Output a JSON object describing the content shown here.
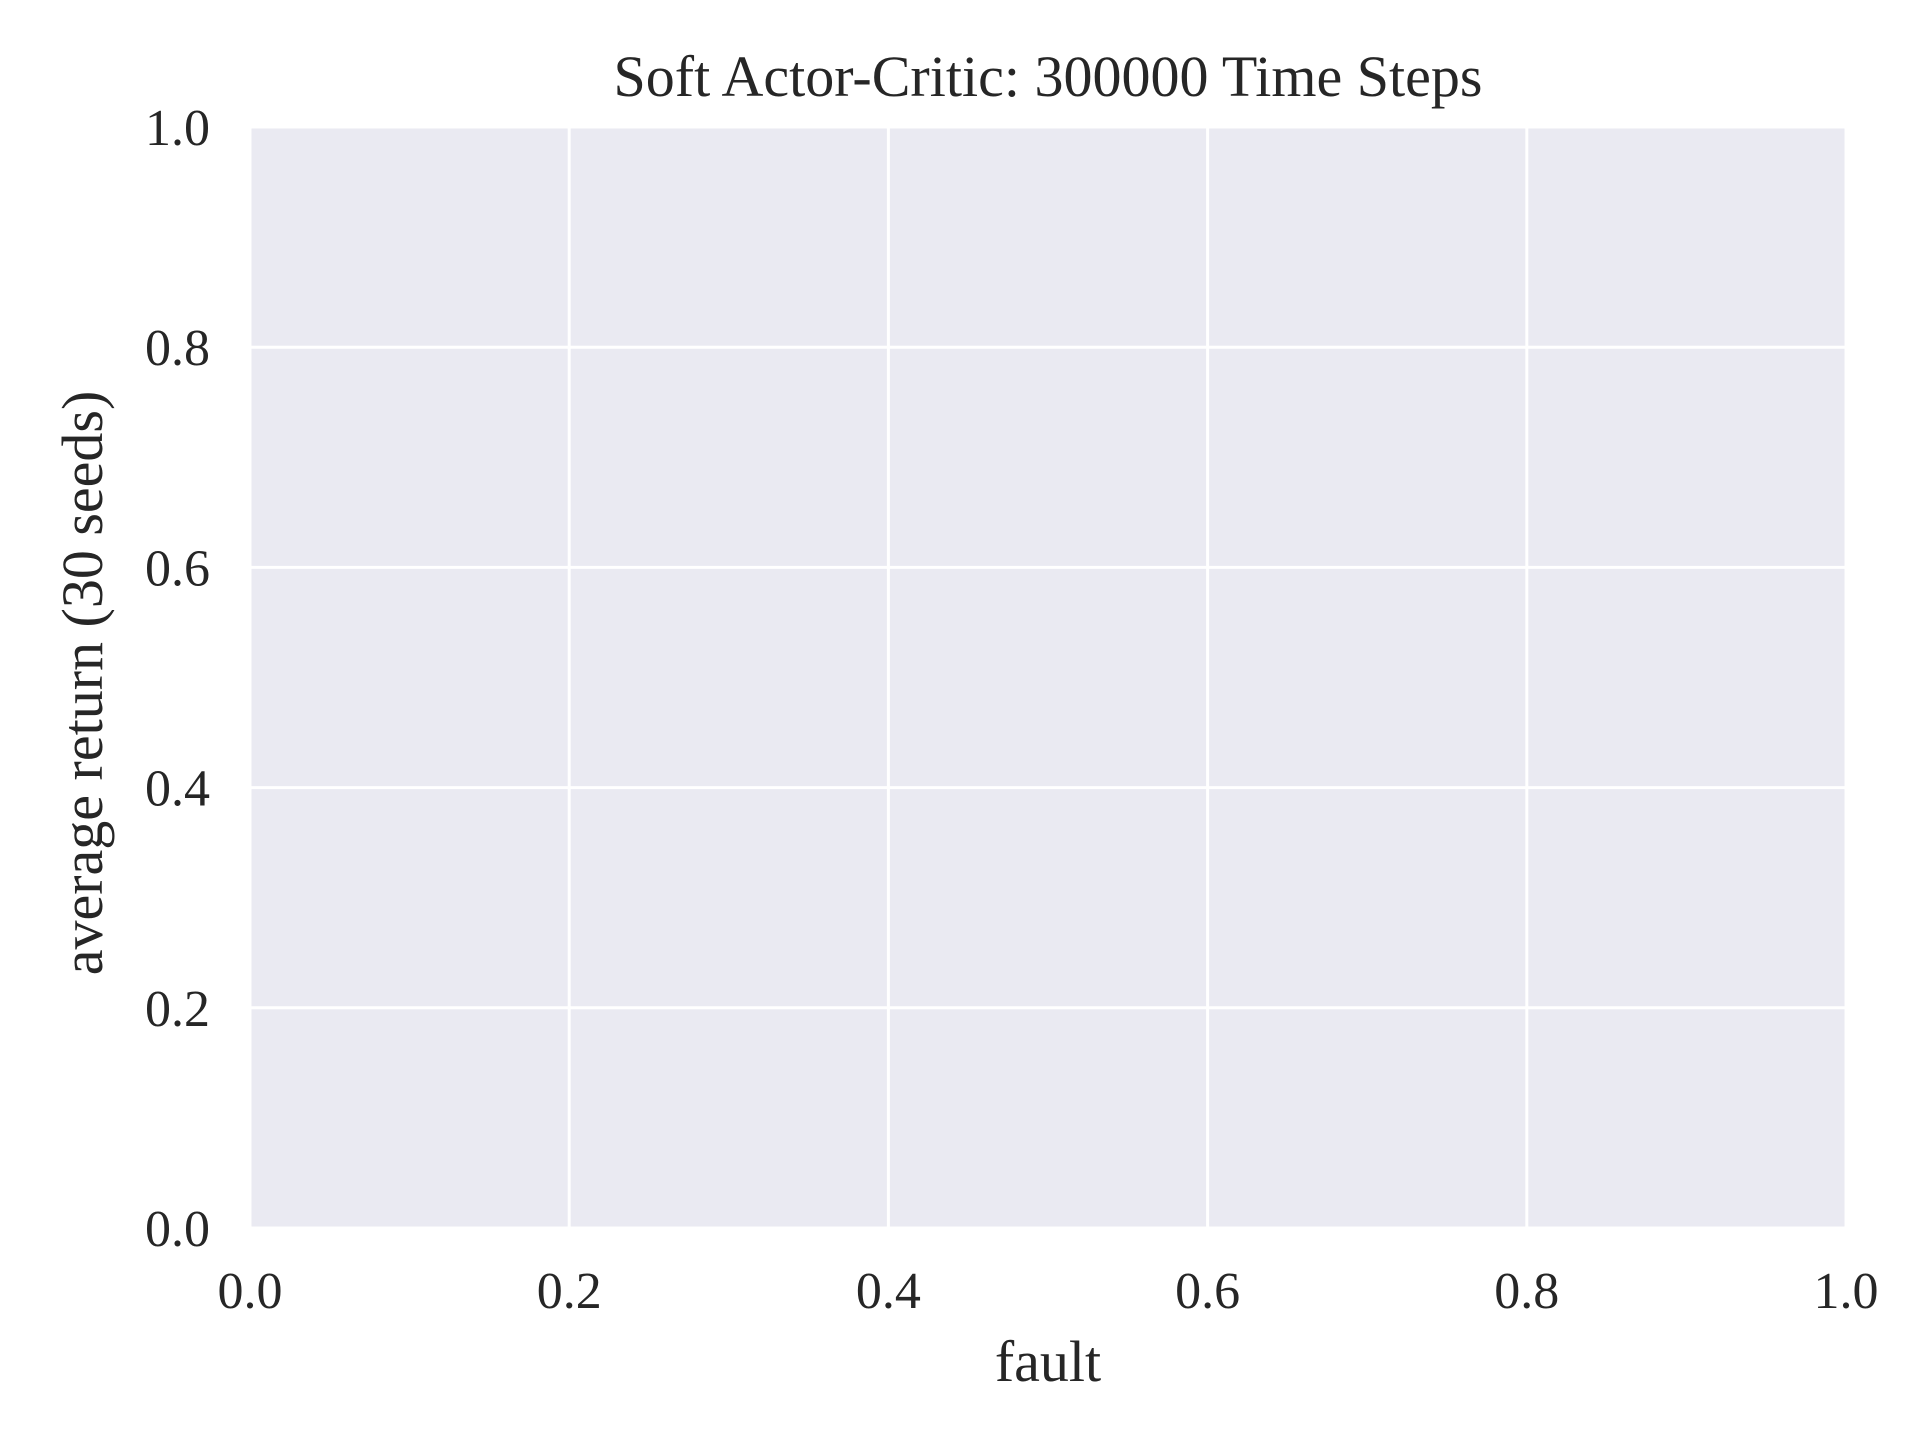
{
  "chart_data": {
    "type": "line",
    "title": "Soft Actor-Critic: 300000 Time Steps",
    "xlabel": "fault",
    "ylabel": "average return (30 seeds)",
    "xlim": [
      0.0,
      1.0
    ],
    "ylim": [
      0.0,
      1.0
    ],
    "xticks": [
      0.0,
      0.2,
      0.4,
      0.6,
      0.8,
      1.0
    ],
    "yticks": [
      0.0,
      0.2,
      0.4,
      0.6,
      0.8,
      1.0
    ],
    "xtick_labels": [
      "0.0",
      "0.2",
      "0.4",
      "0.6",
      "0.8",
      "1.0"
    ],
    "ytick_labels": [
      "0.0",
      "0.2",
      "0.4",
      "0.6",
      "0.8",
      "1.0"
    ],
    "grid": true,
    "series": [],
    "colors": {
      "plot_background": "#eaeaf2",
      "grid": "#ffffff",
      "text": "#262626"
    }
  }
}
